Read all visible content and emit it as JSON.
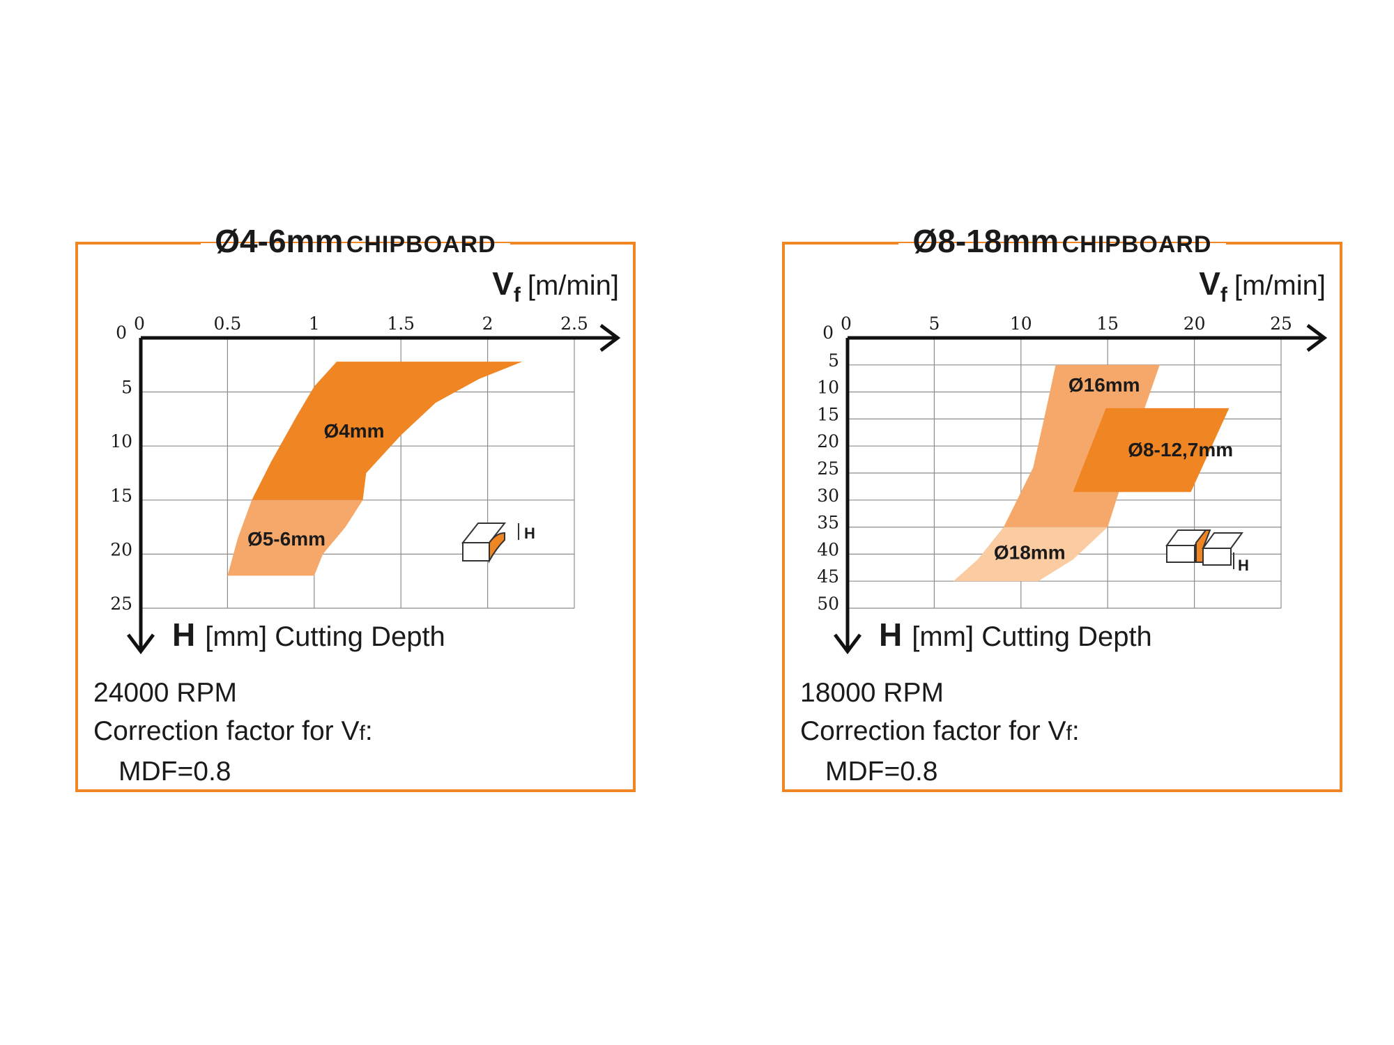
{
  "chart_data": [
    {
      "type": "area",
      "title": "Ø4-6mm",
      "material": "CHIPBOARD",
      "xlabel_symbol": "V",
      "xlabel_sub": "f",
      "xlabel_unit": "[m/min]",
      "ylabel_symbol": "H",
      "ylabel_text": "[mm] Cutting Depth",
      "x_ticks": [
        "0",
        "0.5",
        "1",
        "1.5",
        "2",
        "2.5"
      ],
      "x_tick_values": [
        0,
        0.5,
        1,
        1.5,
        2,
        2.5
      ],
      "y_ticks": [
        "0",
        "5",
        "10",
        "15",
        "20",
        "25"
      ],
      "y_tick_values": [
        0,
        5,
        10,
        15,
        20,
        25
      ],
      "xlim": [
        0,
        2.5
      ],
      "ylim": [
        0,
        25
      ],
      "grid": true,
      "series": [
        {
          "name": "Ø4mm",
          "color": "#F08524",
          "label_at": [
            1.23,
            8.5
          ],
          "polygon": [
            [
              1.13,
              2.2
            ],
            [
              2.2,
              2.2
            ],
            [
              1.95,
              3.8
            ],
            [
              1.7,
              6
            ],
            [
              1.5,
              9
            ],
            [
              1.3,
              12.5
            ],
            [
              1.28,
              15
            ],
            [
              0.64,
              15
            ],
            [
              0.75,
              11.5
            ],
            [
              0.9,
              7.2
            ],
            [
              1.0,
              4.5
            ]
          ]
        },
        {
          "name": "Ø5-6mm",
          "color": "#F6A86A",
          "label_at": [
            0.84,
            18.5
          ],
          "polygon": [
            [
              0.64,
              15
            ],
            [
              1.28,
              15
            ],
            [
              1.18,
              17.5
            ],
            [
              1.05,
              20
            ],
            [
              1.0,
              22
            ],
            [
              0.5,
              22
            ],
            [
              0.56,
              18.5
            ]
          ]
        }
      ],
      "rpm_text": "24000 RPM",
      "correction_text": "Correction factor for V",
      "correction_sub": "f",
      "correction_suffix": ":",
      "mdf_text": "MDF=0.8",
      "icon_label": "H"
    },
    {
      "type": "area",
      "title": "Ø8-18mm",
      "material": "CHIPBOARD",
      "xlabel_symbol": "V",
      "xlabel_sub": "f",
      "xlabel_unit": "[m/min]",
      "ylabel_symbol": "H",
      "ylabel_text": "[mm] Cutting Depth",
      "x_ticks": [
        "0",
        "5",
        "10",
        "15",
        "20",
        "25"
      ],
      "x_tick_values": [
        0,
        5,
        10,
        15,
        20,
        25
      ],
      "y_ticks": [
        "0",
        "5",
        "10",
        "15",
        "20",
        "25",
        "30",
        "35",
        "40",
        "45",
        "50"
      ],
      "y_tick_values": [
        0,
        5,
        10,
        15,
        20,
        25,
        30,
        35,
        40,
        45,
        50
      ],
      "xlim": [
        0,
        25
      ],
      "ylim": [
        0,
        50
      ],
      "grid": true,
      "series": [
        {
          "name": "Ø16mm",
          "color": "#F6A86A",
          "label_at": [
            14.8,
            8.5
          ],
          "polygon": [
            [
              12,
              5
            ],
            [
              18,
              5
            ],
            [
              16.7,
              17
            ],
            [
              15.7,
              28
            ],
            [
              15,
              35
            ],
            [
              9,
              35
            ],
            [
              10.7,
              24
            ],
            [
              11.4,
              14
            ]
          ]
        },
        {
          "name": "Ø8-12,7mm",
          "color": "#F08524",
          "label_at": [
            19.2,
            20.5
          ],
          "polygon": [
            [
              14.9,
              13
            ],
            [
              22,
              13
            ],
            [
              19.8,
              28.5
            ],
            [
              13,
              28.5
            ]
          ]
        },
        {
          "name": "Ø18mm",
          "color": "#FBCBA2",
          "label_at": [
            10.5,
            39.5
          ],
          "polygon": [
            [
              9,
              35
            ],
            [
              15,
              35
            ],
            [
              13,
              41
            ],
            [
              11,
              45
            ],
            [
              6.1,
              45
            ],
            [
              7.5,
              41
            ]
          ]
        }
      ],
      "rpm_text": "18000 RPM",
      "correction_text": "Correction factor for V",
      "correction_sub": "f",
      "correction_suffix": ":",
      "mdf_text": "MDF=0.8",
      "icon_label": "H"
    }
  ]
}
